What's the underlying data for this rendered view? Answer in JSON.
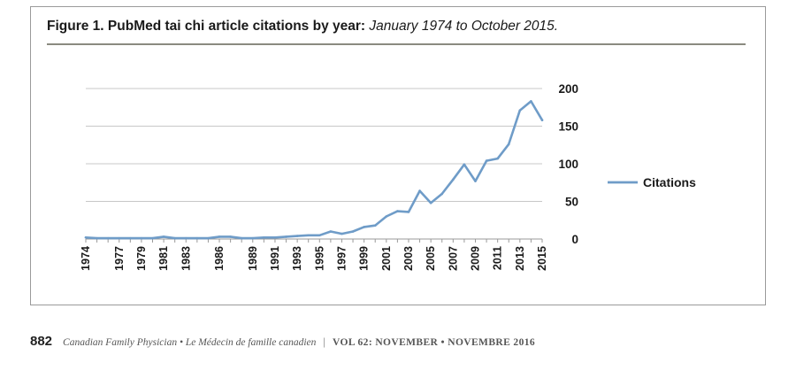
{
  "figure": {
    "label": "Figure 1.",
    "title": "PubMed tai chi article citations by year:",
    "subtitle": "January 1974 to October 2015."
  },
  "footer": {
    "page_number": "882",
    "journal": "Canadian Family Physician • Le Médecin de famille canadien",
    "separator": "|",
    "volume": "VOL 62: NOVEMBER • NOVEMBRE 2016"
  },
  "colors": {
    "line": "#6f9cc8",
    "grid": "#c8c8c8",
    "axis_text": "#1a1a1a"
  },
  "chart_data": {
    "type": "line",
    "title": "",
    "xlabel": "",
    "ylabel": "",
    "ylim": [
      0,
      200
    ],
    "yticks": [
      0,
      50,
      100,
      150,
      200
    ],
    "grid": true,
    "legend_position": "right",
    "x_tick_labels": [
      "1974",
      "1977",
      "1979",
      "1981",
      "1983",
      "1986",
      "1989",
      "1991",
      "1993",
      "1995",
      "1997",
      "1999",
      "2001",
      "2003",
      "2005",
      "2007",
      "2009",
      "2011",
      "2013",
      "2015"
    ],
    "series": [
      {
        "name": "Citations",
        "x": [
          1974,
          1975,
          1976,
          1977,
          1978,
          1979,
          1980,
          1981,
          1982,
          1983,
          1984,
          1985,
          1986,
          1987,
          1988,
          1989,
          1990,
          1991,
          1992,
          1993,
          1994,
          1995,
          1996,
          1997,
          1998,
          1999,
          2000,
          2001,
          2002,
          2003,
          2004,
          2005,
          2006,
          2007,
          2008,
          2009,
          2010,
          2011,
          2012,
          2013,
          2014,
          2015
        ],
        "values": [
          2,
          1,
          1,
          1,
          1,
          1,
          1,
          3,
          1,
          1,
          1,
          1,
          3,
          3,
          1,
          1,
          2,
          2,
          3,
          4,
          5,
          5,
          10,
          7,
          10,
          16,
          18,
          30,
          37,
          36,
          64,
          48,
          60,
          79,
          99,
          77,
          104,
          107,
          126,
          171,
          183,
          158
        ]
      }
    ]
  }
}
